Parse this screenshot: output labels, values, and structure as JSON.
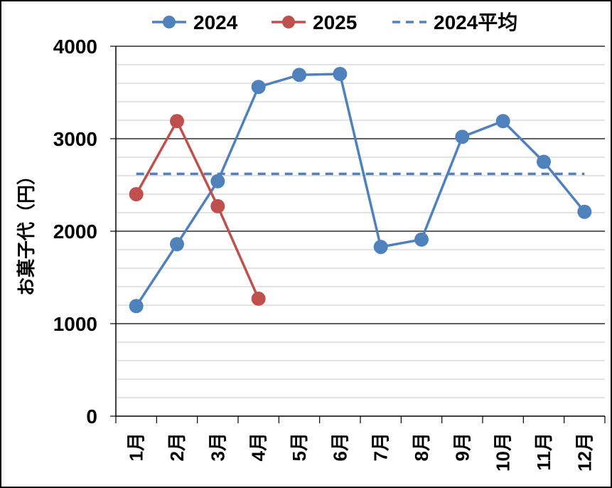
{
  "chart_data": {
    "type": "line",
    "ylabel": "お菓子代（円）",
    "xlabel": "",
    "categories": [
      "1月",
      "2月",
      "3月",
      "4月",
      "5月",
      "6月",
      "7月",
      "8月",
      "9月",
      "10月",
      "11月",
      "12月"
    ],
    "ylim": [
      0,
      4000
    ],
    "y_major_ticks": [
      0,
      1000,
      2000,
      3000,
      4000
    ],
    "y_minor_step": 200,
    "grid": "on",
    "legend_position": "top",
    "series": [
      {
        "name": "2024",
        "color": "#4f81bd",
        "style": "solid-markers",
        "values": [
          1190,
          1860,
          2540,
          3560,
          3690,
          3700,
          1830,
          1910,
          3020,
          3190,
          2750,
          2210
        ]
      },
      {
        "name": "2025",
        "color": "#c0504d",
        "style": "solid-markers",
        "values": [
          2400,
          3190,
          2270,
          1270,
          null,
          null,
          null,
          null,
          null,
          null,
          null,
          null
        ]
      },
      {
        "name": "2024平均",
        "color": "#4f81bd",
        "style": "dashed",
        "values": [
          2620,
          2620,
          2620,
          2620,
          2620,
          2620,
          2620,
          2620,
          2620,
          2620,
          2620,
          2620
        ]
      }
    ]
  }
}
